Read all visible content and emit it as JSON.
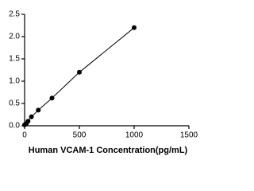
{
  "chart_data": {
    "type": "scatter",
    "x_label": "Human VCAM-1 Concentration(pg/mL)",
    "x": [
      0,
      15.6,
      31.25,
      62.5,
      125,
      250,
      500,
      1000
    ],
    "values": [
      0.02,
      0.05,
      0.1,
      0.2,
      0.35,
      0.62,
      1.2,
      2.2
    ],
    "color": "#000000",
    "xlim": [
      0,
      1500
    ],
    "xticks": [
      0,
      500,
      1000,
      1500
    ],
    "ylim": [
      0,
      2.5
    ],
    "yticks": [
      {
        "value": 0,
        "label": "0.0"
      },
      0.5,
      {
        "value": 1,
        "label": "1.0"
      },
      1.5,
      {
        "value": 2,
        "label": "2.0"
      },
      2.5
    ],
    "connect": true
  }
}
